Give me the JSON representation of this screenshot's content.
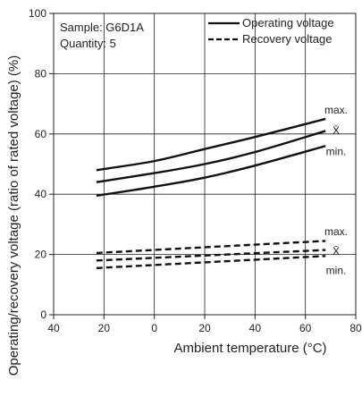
{
  "chart_data": {
    "type": "line",
    "title": "",
    "xlabel": "Ambient temperature (°C)",
    "ylabel": "Operating/recovery voltage (ratio of rated voltage) (%)",
    "xlim": [
      -40,
      80
    ],
    "ylim": [
      0,
      100
    ],
    "xticks": [
      -40,
      -20,
      0,
      20,
      40,
      60,
      80
    ],
    "xtick_labels": [
      "40",
      "20",
      "0",
      "20",
      "40",
      "60",
      "80"
    ],
    "yticks": [
      0,
      20,
      40,
      60,
      80,
      100
    ],
    "ytick_labels": [
      "0",
      "20",
      "40",
      "60",
      "80",
      "100"
    ],
    "grid": true,
    "legend_position": "top-right",
    "legend": [
      {
        "label": "Operating voltage",
        "style": "solid"
      },
      {
        "label": "Recovery voltage",
        "style": "dashed"
      }
    ],
    "annotations": [
      "Sample: G6D1A",
      "Quantity: 5"
    ],
    "series": [
      {
        "group": "operating",
        "stat": "max.",
        "style": "solid",
        "x": [
          -23,
          0,
          20,
          40,
          68
        ],
        "y": [
          48,
          51,
          55,
          59,
          65
        ]
      },
      {
        "group": "operating",
        "stat": "X̄",
        "style": "solid",
        "x": [
          -23,
          0,
          20,
          40,
          68
        ],
        "y": [
          44,
          47,
          50,
          54,
          61
        ]
      },
      {
        "group": "operating",
        "stat": "min.",
        "style": "solid",
        "x": [
          -23,
          0,
          20,
          40,
          68
        ],
        "y": [
          39.5,
          42.5,
          45.5,
          49.5,
          56
        ]
      },
      {
        "group": "recovery",
        "stat": "max.",
        "style": "dashed",
        "x": [
          -23,
          68
        ],
        "y": [
          20.5,
          24.5
        ]
      },
      {
        "group": "recovery",
        "stat": "X̄",
        "style": "dashed",
        "x": [
          -23,
          68
        ],
        "y": [
          18,
          21.5
        ]
      },
      {
        "group": "recovery",
        "stat": "min.",
        "style": "dashed",
        "x": [
          -23,
          68
        ],
        "y": [
          15.5,
          19.5
        ]
      }
    ],
    "stat_labels": {
      "max": "max.",
      "mean": "X̄",
      "min": "min."
    }
  }
}
